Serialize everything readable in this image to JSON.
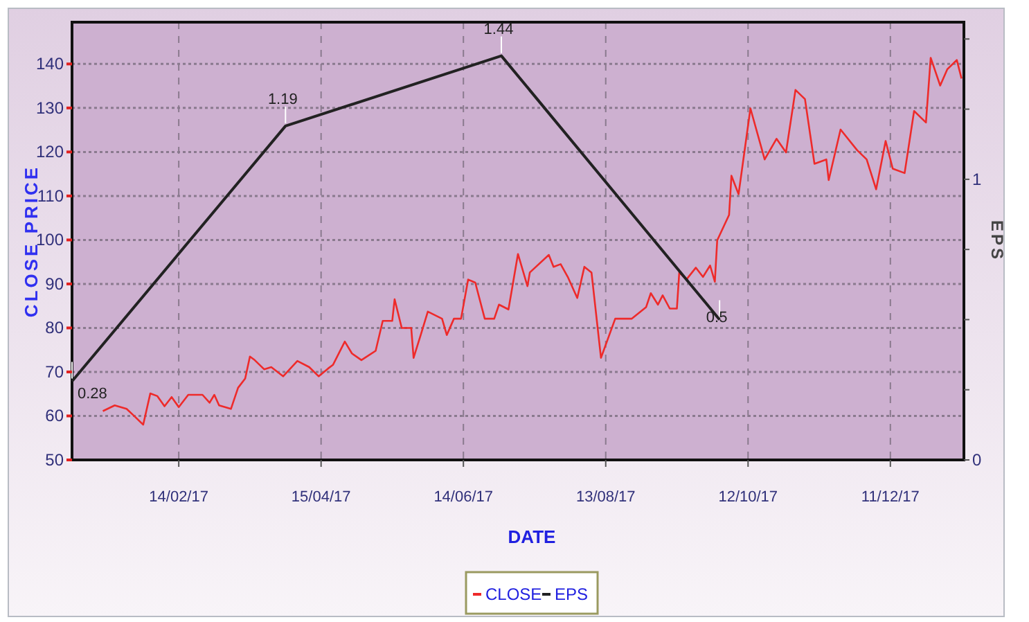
{
  "chart_data": {
    "type": "line",
    "xlabel": "DATE",
    "ylabel": "CLOSE PRICE",
    "y2label": "EPS",
    "xlim": [
      "2016-12-31",
      "2018-01-11"
    ],
    "xticks": [
      {
        "value": "2017-02-14",
        "label": "14/02/17"
      },
      {
        "value": "2017-04-15",
        "label": "15/04/17"
      },
      {
        "value": "2017-06-14",
        "label": "14/06/17"
      },
      {
        "value": "2017-08-13",
        "label": "13/08/17"
      },
      {
        "value": "2017-10-12",
        "label": "12/10/17"
      },
      {
        "value": "2017-12-11",
        "label": "11/12/17"
      }
    ],
    "ylim": [
      50,
      149.5
    ],
    "yticks": [
      50,
      60,
      70,
      80,
      90,
      100,
      110,
      120,
      130,
      140
    ],
    "y2lim": [
      0,
      1.56
    ],
    "y2ticks": [
      0,
      {
        "value": 0.25,
        "label": null
      },
      {
        "value": 0.5,
        "label": null
      },
      {
        "value": 0.75,
        "label": null
      },
      1,
      {
        "value": 1.25,
        "label": null
      },
      {
        "value": 1.5,
        "label": null
      }
    ],
    "grid": true,
    "legend": "bottom",
    "marker": "none",
    "series": [
      {
        "name": "CLOSE",
        "color": "#ee2a2a",
        "x": [
          "2017-01-13",
          "2017-01-18",
          "2017-01-23",
          "2017-01-26",
          "2017-01-30",
          "2017-02-02",
          "2017-02-05",
          "2017-02-08",
          "2017-02-11",
          "2017-02-14",
          "2017-02-18",
          "2017-02-24",
          "2017-02-27",
          "2017-03-01",
          "2017-03-03",
          "2017-03-08",
          "2017-03-11",
          "2017-03-14",
          "2017-03-16",
          "2017-03-18",
          "2017-03-22",
          "2017-03-25",
          "2017-03-30",
          "2017-04-05",
          "2017-04-10",
          "2017-04-14",
          "2017-04-18",
          "2017-04-20",
          "2017-04-25",
          "2017-04-28",
          "2017-05-02",
          "2017-05-08",
          "2017-05-11",
          "2017-05-15",
          "2017-05-16",
          "2017-05-19",
          "2017-05-23",
          "2017-05-24",
          "2017-05-27",
          "2017-05-30",
          "2017-06-05",
          "2017-06-07",
          "2017-06-10",
          "2017-06-13",
          "2017-06-16",
          "2017-06-19",
          "2017-06-23",
          "2017-06-27",
          "2017-06-29",
          "2017-07-03",
          "2017-07-07",
          "2017-07-11",
          "2017-07-12",
          "2017-07-20",
          "2017-07-22",
          "2017-07-25",
          "2017-07-28",
          "2017-08-01",
          "2017-08-04",
          "2017-08-07",
          "2017-08-11",
          "2017-08-17",
          "2017-08-24",
          "2017-08-30",
          "2017-09-01",
          "2017-09-04",
          "2017-09-06",
          "2017-09-09",
          "2017-09-12",
          "2017-09-13",
          "2017-09-16",
          "2017-09-20",
          "2017-09-23",
          "2017-09-26",
          "2017-09-28",
          "2017-09-29",
          "2017-10-04",
          "2017-10-05",
          "2017-10-08",
          "2017-10-13",
          "2017-10-19",
          "2017-10-24",
          "2017-10-28",
          "2017-11-01",
          "2017-11-05",
          "2017-11-09",
          "2017-11-14",
          "2017-11-15",
          "2017-11-20",
          "2017-11-27",
          "2017-12-01",
          "2017-12-05",
          "2017-12-09",
          "2017-12-12",
          "2017-12-17",
          "2017-12-21",
          "2017-12-26",
          "2017-12-28",
          "2018-01-01",
          "2018-01-04",
          "2018-01-08",
          "2018-01-10"
        ],
        "values": [
          61.1,
          62.4,
          61.6,
          60.1,
          58.0,
          65.1,
          64.5,
          62.2,
          64.3,
          62.0,
          64.8,
          64.8,
          63.0,
          64.8,
          62.4,
          61.6,
          66.4,
          68.5,
          73.5,
          72.7,
          70.6,
          71.1,
          69.0,
          72.5,
          71.1,
          69.0,
          70.8,
          71.6,
          76.9,
          74.2,
          72.7,
          74.8,
          81.6,
          81.6,
          86.5,
          80.0,
          80.0,
          73.2,
          78.4,
          83.7,
          82.1,
          78.4,
          82.1,
          82.1,
          91.0,
          90.3,
          82.1,
          82.1,
          85.3,
          84.2,
          96.8,
          89.5,
          92.6,
          96.6,
          93.9,
          94.5,
          91.6,
          86.8,
          93.9,
          92.6,
          73.2,
          82.1,
          82.1,
          84.7,
          87.9,
          85.3,
          87.4,
          84.4,
          84.4,
          92.6,
          91.0,
          93.7,
          91.6,
          94.2,
          90.5,
          99.9,
          105.7,
          114.6,
          110.4,
          129.9,
          118.3,
          123.0,
          119.9,
          134.1,
          132.0,
          117.3,
          118.3,
          113.6,
          125.1,
          120.4,
          118.3,
          111.5,
          122.5,
          116.2,
          115.2,
          129.3,
          126.7,
          141.4,
          135.1,
          138.8,
          140.9,
          136.7
        ]
      },
      {
        "name": "EPS",
        "color": "#222222",
        "axis": "y2",
        "x": [
          "2016-12-31",
          "2017-03-31",
          "2017-06-30",
          "2017-09-30"
        ],
        "values": [
          0.28,
          1.19,
          1.44,
          0.5
        ],
        "value_labels": [
          "0.28",
          "1.19",
          "1.44",
          "0.5"
        ]
      }
    ]
  }
}
